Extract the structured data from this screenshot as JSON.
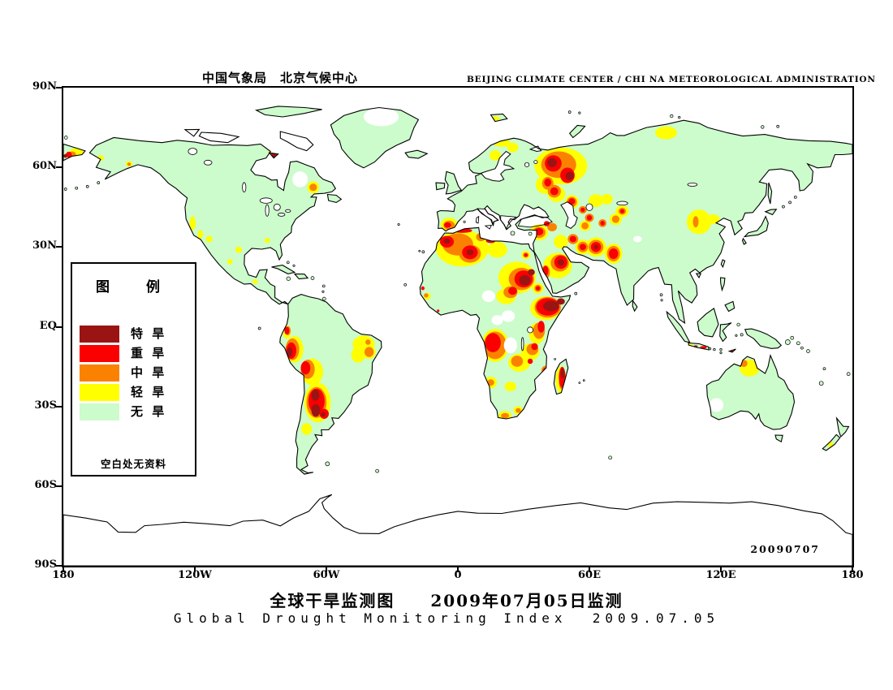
{
  "header": {
    "title_cn": "中国气象局　北京气候中心",
    "title_en": "BEIJING CLIMATE CENTER / CHI NA METEOROLOGICAL ADMINISTRATION"
  },
  "footer": {
    "title_cn": "全球干旱监测图　　2009年07月05日监测",
    "title_en": "Global Drought Monitoring Index  2009.07.05"
  },
  "map": {
    "date_stamp": "20090707",
    "y_axis": [
      {
        "label": "90N",
        "lat": 90
      },
      {
        "label": "60N",
        "lat": 60
      },
      {
        "label": "30N",
        "lat": 30
      },
      {
        "label": "EQ",
        "lat": 0
      },
      {
        "label": "30S",
        "lat": -30
      },
      {
        "label": "60S",
        "lat": -60
      },
      {
        "label": "90S",
        "lat": -90
      }
    ],
    "x_axis": [
      {
        "label": "180",
        "lon": -180
      },
      {
        "label": "120W",
        "lon": -120
      },
      {
        "label": "60W",
        "lon": -60
      },
      {
        "label": "0",
        "lon": 0
      },
      {
        "label": "60E",
        "lon": 60
      },
      {
        "label": "120E",
        "lon": 120
      },
      {
        "label": "180",
        "lon": 180
      }
    ]
  },
  "legend": {
    "title": "图　例",
    "note": "空白处无资料",
    "items": [
      {
        "label": "特 旱",
        "key": "extreme",
        "color": "#9B1414"
      },
      {
        "label": "重 旱",
        "key": "severe",
        "color": "#FB0000"
      },
      {
        "label": "中 旱",
        "key": "moderate",
        "color": "#FB8200"
      },
      {
        "label": "轻 旱",
        "key": "light",
        "color": "#FFFF00"
      },
      {
        "label": "无 旱",
        "key": "none",
        "color": "#CCFBCC"
      }
    ]
  },
  "chart_data": {
    "type": "map",
    "projection": "equirectangular",
    "lon_range": [
      -180,
      180
    ],
    "lat_range": [
      -90,
      90
    ],
    "colors": {
      "ocean": "#FFFFFF",
      "coast": "#000000",
      "none": "#CCFBCC",
      "light": "#FFFF00",
      "moderate": "#FB8200",
      "severe": "#FB0000",
      "extreme": "#9B1414",
      "no_data": "#FFFFFF"
    },
    "drought_regions": {
      "light": [
        [
          47,
          60.5,
          12,
          7
        ],
        [
          40,
          53.5,
          4.5,
          3.5
        ],
        [
          45,
          50,
          4,
          3
        ],
        [
          20,
          69.3,
          4,
          1.6
        ],
        [
          17,
          64.5,
          2.6,
          2
        ],
        [
          25,
          67.5,
          2.6,
          1.8
        ],
        [
          17,
          78.4,
          2.2,
          0.9
        ],
        [
          95,
          73,
          5,
          2.4
        ],
        [
          -174,
          65,
          3.4,
          2.4
        ],
        [
          -150,
          61.3,
          1.6,
          1
        ],
        [
          -163,
          63.5,
          1.5,
          1.1
        ],
        [
          -84,
          66.5,
          2.6,
          2.4
        ],
        [
          -66,
          52.5,
          2.7,
          2.3
        ],
        [
          -121,
          39,
          1.4,
          2.6
        ],
        [
          -117.5,
          34.8,
          1.3,
          1.6
        ],
        [
          -113.5,
          33,
          1.5,
          1.2
        ],
        [
          -100,
          29,
          1.5,
          1.2
        ],
        [
          -104,
          24.5,
          1.2,
          1
        ],
        [
          -92.5,
          17,
          1.2,
          0.9
        ],
        [
          -87,
          32.5,
          1.2,
          1
        ],
        [
          -4,
          38.5,
          3.8,
          2.6
        ],
        [
          2,
          29.5,
          12,
          6.8
        ],
        [
          18,
          29,
          4.5,
          3
        ],
        [
          -14,
          11.5,
          1.6,
          1.3
        ],
        [
          27,
          18.5,
          8.5,
          6
        ],
        [
          22,
          11.5,
          4.5,
          3
        ],
        [
          40,
          7,
          7,
          4.5
        ],
        [
          36,
          -2.5,
          3.6,
          4
        ],
        [
          33,
          -9.5,
          4.2,
          3.2
        ],
        [
          45.5,
          23,
          6.5,
          4.8
        ],
        [
          37,
          35.5,
          4.2,
          3
        ],
        [
          47,
          32,
          3.2,
          2.6
        ],
        [
          57,
          30,
          3.4,
          2.8
        ],
        [
          63,
          30,
          4.6,
          3.7
        ],
        [
          71,
          27.5,
          4,
          3.8
        ],
        [
          52,
          47,
          3.2,
          2.6
        ],
        [
          63,
          47.5,
          3.4,
          2.4
        ],
        [
          72,
          40.5,
          2.8,
          2.2
        ],
        [
          75,
          43.5,
          3,
          2.2
        ],
        [
          68,
          48,
          2.6,
          2
        ],
        [
          58,
          38,
          2.6,
          2
        ],
        [
          110,
          39.5,
          5.6,
          4.6
        ],
        [
          116.5,
          40.5,
          3,
          1.8
        ],
        [
          -43,
          -6.5,
          5,
          3.2
        ],
        [
          -45.5,
          -10.5,
          3.2,
          3
        ],
        [
          -40.5,
          -9.5,
          3,
          2.6
        ],
        [
          -78,
          -2,
          1.8,
          2.6
        ],
        [
          -74.5,
          -8.5,
          4,
          5
        ],
        [
          -66.5,
          -17,
          5,
          5
        ],
        [
          -64,
          -28.5,
          6,
          7.5
        ],
        [
          -69,
          -38.5,
          2.4,
          2.2
        ],
        [
          17,
          -7,
          6.2,
          6.2
        ],
        [
          28,
          -13.5,
          5,
          3.4
        ],
        [
          15,
          -21,
          2.8,
          2.2
        ],
        [
          24,
          -22.5,
          2.6,
          1.8
        ],
        [
          21.5,
          -33.5,
          3,
          1.8
        ],
        [
          27.5,
          -31.5,
          2.2,
          1.6
        ],
        [
          47,
          -20,
          2.4,
          5
        ],
        [
          133,
          -15.5,
          4.6,
          3.2
        ],
        [
          106,
          -6.9,
          1.2,
          0.7
        ],
        [
          170,
          -44.3,
          1.3,
          1
        ],
        [
          36.5,
          14.5,
          2.5,
          2
        ],
        [
          31,
          27,
          2,
          1.6
        ]
      ],
      "moderate": [
        [
          46,
          61,
          8,
          5
        ],
        [
          41,
          54,
          2.6,
          2.4
        ],
        [
          44,
          51,
          3,
          2.4
        ],
        [
          -84,
          66,
          1.9,
          1.7
        ],
        [
          -66,
          52.5,
          1.7,
          1.4
        ],
        [
          -150,
          61.2,
          0.8,
          0.6
        ],
        [
          -176,
          64.5,
          1.9,
          1.5
        ],
        [
          -4,
          38.2,
          2.6,
          1.7
        ],
        [
          0,
          31,
          7,
          4.2
        ],
        [
          5.5,
          27.5,
          5,
          3.4
        ],
        [
          10.5,
          33.8,
          2.2,
          1.6
        ],
        [
          -14.5,
          11.8,
          1,
          0.8
        ],
        [
          29,
          18,
          5.8,
          4.2
        ],
        [
          24,
          13,
          3.2,
          2.2
        ],
        [
          41,
          7.3,
          6,
          3.9
        ],
        [
          37,
          -1.5,
          2.7,
          3.1
        ],
        [
          34,
          -8.5,
          2.7,
          2.2
        ],
        [
          46.5,
          24,
          4.2,
          3.2
        ],
        [
          40,
          20.5,
          2,
          2.6
        ],
        [
          37,
          35.5,
          3,
          2.1
        ],
        [
          43,
          37.5,
          2.2,
          1.6
        ],
        [
          52.5,
          33,
          2.4,
          1.9
        ],
        [
          57,
          30,
          2.4,
          2
        ],
        [
          63,
          30,
          3.4,
          2.7
        ],
        [
          71,
          27.5,
          3,
          2.9
        ],
        [
          52,
          47,
          2.3,
          1.9
        ],
        [
          57,
          44,
          1.8,
          1.4
        ],
        [
          60,
          41,
          2,
          1.6
        ],
        [
          66,
          39,
          1.8,
          1.5
        ],
        [
          72,
          40.5,
          1.7,
          1.4
        ],
        [
          75,
          43.5,
          1.7,
          1.3
        ],
        [
          58,
          38,
          1.6,
          1.3
        ],
        [
          108.5,
          39.5,
          1.3,
          2.1
        ],
        [
          -41,
          -5.8,
          1.2,
          1
        ],
        [
          -40.5,
          -9.5,
          2.1,
          1.9
        ],
        [
          -77.5,
          -1.5,
          1.2,
          1.7
        ],
        [
          -75.5,
          -8.5,
          3.1,
          4.1
        ],
        [
          -68.5,
          -16,
          3.2,
          3.6
        ],
        [
          -64.5,
          -28.5,
          4.6,
          5.8
        ],
        [
          17,
          -7,
          5.2,
          5.2
        ],
        [
          27,
          -13,
          2.7,
          2.1
        ],
        [
          40,
          -16.5,
          1.9,
          1.8
        ],
        [
          47.5,
          -21,
          1.4,
          2.6
        ],
        [
          15,
          -21,
          1.6,
          1.2
        ],
        [
          21.5,
          -33.5,
          1.8,
          1
        ],
        [
          27.5,
          -31.5,
          1.2,
          0.9
        ],
        [
          130.5,
          -13.8,
          1.6,
          1.3
        ],
        [
          115,
          -8.5,
          0.9,
          0.5
        ],
        [
          31,
          27,
          1.3,
          1
        ],
        [
          36.5,
          14.5,
          1.6,
          1.3
        ]
      ],
      "severe": [
        [
          43.5,
          61.5,
          3.8,
          3.1
        ],
        [
          50,
          57,
          3.3,
          2.9
        ],
        [
          41,
          54.3,
          1.6,
          1.5
        ],
        [
          44,
          51,
          1.8,
          1.5
        ],
        [
          -83.8,
          65.5,
          1.3,
          2
        ],
        [
          -177.5,
          64.8,
          1.4,
          1.1
        ],
        [
          177.5,
          53.2,
          0.8,
          0.6
        ],
        [
          -4.7,
          38.3,
          1.6,
          1
        ],
        [
          -5,
          32,
          3.2,
          2.2
        ],
        [
          5.5,
          28,
          3.6,
          2.6
        ],
        [
          2,
          36.2,
          4.5,
          0.9
        ],
        [
          15,
          32.3,
          2.2,
          0.8
        ],
        [
          -16,
          14.5,
          0.8,
          0.7
        ],
        [
          -9,
          6,
          0.6,
          0.5
        ],
        [
          30,
          18,
          4.2,
          3.2
        ],
        [
          25,
          13.5,
          2,
          1.5
        ],
        [
          31,
          27,
          0.8,
          0.6
        ],
        [
          41,
          7.5,
          5.3,
          3.3
        ],
        [
          38,
          0,
          1.6,
          2.2
        ],
        [
          35,
          -7.5,
          1.5,
          1.3
        ],
        [
          47,
          24.3,
          3,
          2.5
        ],
        [
          40,
          21,
          1.3,
          1.9
        ],
        [
          37,
          35.8,
          2,
          1.4
        ],
        [
          40.5,
          38.8,
          1.3,
          1
        ],
        [
          52.5,
          33,
          1.5,
          1.2
        ],
        [
          57,
          30,
          1.5,
          1.2
        ],
        [
          63,
          30,
          2.3,
          1.9
        ],
        [
          71,
          27.5,
          2.1,
          2
        ],
        [
          52,
          47.2,
          1.5,
          1.2
        ],
        [
          60,
          41,
          1.2,
          1
        ],
        [
          66,
          39,
          1,
          0.9
        ],
        [
          75,
          43.5,
          1,
          0.8
        ],
        [
          57,
          44,
          1,
          0.8
        ],
        [
          -78,
          -1.5,
          1.1,
          1.5
        ],
        [
          -76,
          -9,
          2.3,
          3.1
        ],
        [
          -69.5,
          -15.5,
          2.2,
          2.5
        ],
        [
          -64.5,
          -28,
          3.7,
          4.7
        ],
        [
          -61,
          -32.8,
          2.1,
          1.9
        ],
        [
          16,
          -6,
          3.6,
          3.6
        ],
        [
          33,
          -13,
          1.2,
          1
        ],
        [
          40,
          -16.5,
          1.2,
          1.1
        ],
        [
          47.6,
          -19,
          1.5,
          3.9
        ],
        [
          112,
          -7.8,
          1.5,
          0.55
        ],
        [
          122,
          -8.9,
          1.5,
          0.5
        ],
        [
          125,
          -9.3,
          1,
          0.4
        ],
        [
          36.5,
          14.5,
          1,
          0.8
        ]
      ],
      "extreme": [
        [
          43,
          61.8,
          2.1,
          1.7
        ],
        [
          51,
          56.8,
          1.9,
          1.6
        ],
        [
          -5,
          32.2,
          1.4,
          1
        ],
        [
          5.5,
          28,
          1.6,
          1.1
        ],
        [
          30.5,
          17.5,
          2.6,
          2
        ],
        [
          33.5,
          20.5,
          1.6,
          1.2
        ],
        [
          42.5,
          7.8,
          3.6,
          2
        ],
        [
          47,
          9.5,
          1.8,
          1.2
        ],
        [
          47,
          24.2,
          1.5,
          1.2
        ],
        [
          63,
          30,
          1,
          0.8
        ],
        [
          -76.7,
          -9.5,
          1.2,
          1.8
        ],
        [
          -65,
          -25.8,
          1.8,
          2.1
        ],
        [
          -64.8,
          -31.5,
          2,
          2.4
        ],
        [
          -61.5,
          -33,
          1,
          0.9
        ],
        [
          47.8,
          -17.5,
          0.9,
          1.9
        ],
        [
          118,
          -8.9,
          1.4,
          0.45
        ],
        [
          108.5,
          -7.4,
          0.9,
          0.4
        ],
        [
          -179,
          64.3,
          0.9,
          0.7
        ],
        [
          -84,
          64.6,
          0.7,
          0.9
        ]
      ]
    },
    "no_data_patches": [
      [
        -35,
        79,
        8,
        3.5
      ],
      [
        -72,
        55.5,
        3.5,
        3
      ],
      [
        14,
        11.5,
        3,
        2.2
      ],
      [
        23,
        4,
        3,
        2.2
      ],
      [
        18,
        2.5,
        2.6,
        1.9
      ],
      [
        24,
        -7,
        3,
        3
      ],
      [
        118,
        -29.5,
        3.2,
        2.6
      ],
      [
        82,
        33,
        2,
        1.2
      ]
    ]
  }
}
